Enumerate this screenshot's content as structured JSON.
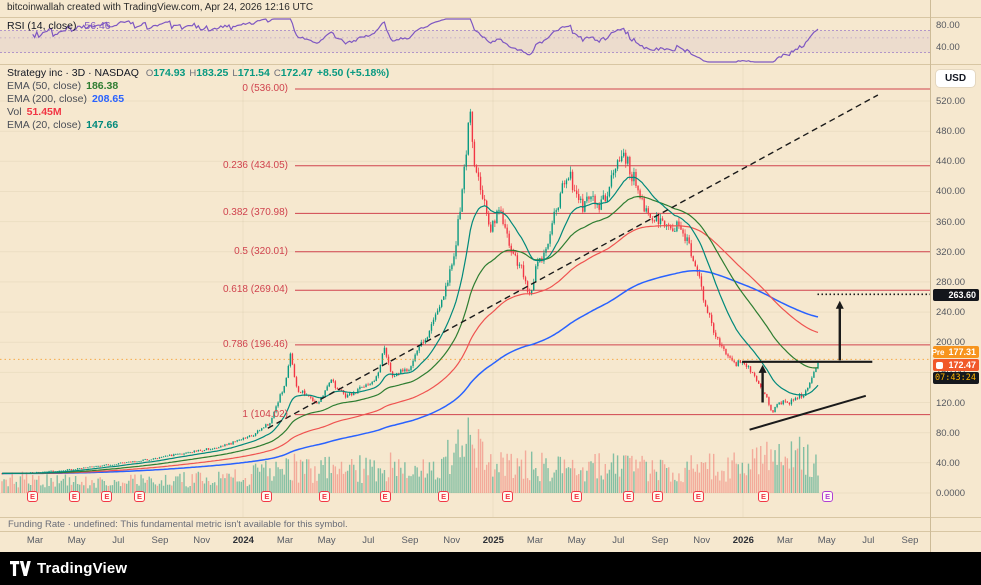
{
  "attribution": "bitcoinwallah created with TradingView.com, Apr 24, 2026 12:16 UTC",
  "rsi_pane": {
    "legend_name": "RSI (14, close)",
    "legend_value": "56.46",
    "ticks": [
      {
        "label": "80.00",
        "value": 80
      },
      {
        "label": "40.00",
        "value": 40
      }
    ]
  },
  "main_legend": {
    "symbol_title": "Strategy inc · 3D · NASDAQ",
    "ohlc": [
      {
        "k": "O",
        "v": "174.93"
      },
      {
        "k": "H",
        "v": "183.25"
      },
      {
        "k": "L",
        "v": "171.54"
      },
      {
        "k": "C",
        "v": "172.47"
      }
    ],
    "change": "+8.50 (+5.18%)",
    "indicators": [
      {
        "name": "EMA (50, close)",
        "value": "186.38",
        "color": "#2e7d31"
      },
      {
        "name": "EMA (200, close)",
        "value": "208.65",
        "color": "#2962ff"
      },
      {
        "name": "Vol",
        "value": "51.45M",
        "color": "#f23645"
      },
      {
        "name": "EMA (20, close)",
        "value": "147.66",
        "color": "#00897b"
      }
    ]
  },
  "price_scale": {
    "currency": "USD",
    "ticks": [
      "520.00",
      "480.00",
      "440.00",
      "400.00",
      "360.00",
      "320.00",
      "280.00",
      "240.00",
      "200.00",
      "160.00",
      "120.00",
      "80.00",
      "40.00",
      "0.0000"
    ],
    "badges": {
      "target": "263.60",
      "pre_label": "Pre",
      "pre_value": "177.31",
      "last_value": "172.47",
      "countdown": "07:43:24"
    }
  },
  "funding_bar": "Funding Rate · undefined: This fundamental metric isn't available for this symbol.",
  "time_axis": [
    "Mar",
    "May",
    "Jul",
    "Sep",
    "Nov",
    "2024",
    "Mar",
    "May",
    "Jul",
    "Sep",
    "Nov",
    "2025",
    "Mar",
    "May",
    "Jul",
    "Sep",
    "Nov",
    "2026",
    "Mar",
    "May",
    "Jul",
    "Sep"
  ],
  "footer": {
    "brand": "TradingView"
  },
  "chart_data": {
    "type": "candlestick",
    "title": "Strategy inc · 3D · NASDAQ",
    "symbol": "Strategy inc",
    "interval": "3D",
    "exchange": "NASDAQ",
    "last_close": 172.47,
    "visible_high": 536.0,
    "visible_low": 104.02,
    "ylim": [
      0,
      565
    ],
    "y_tick_labels": [
      "520.00",
      "480.00",
      "440.00",
      "400.00",
      "360.00",
      "320.00",
      "280.00",
      "240.00",
      "200.00",
      "160.00",
      "120.00",
      "80.00",
      "40.00",
      "0.0000"
    ],
    "x_tick_labels": [
      "Mar",
      "May",
      "Jul",
      "Sep",
      "Nov",
      "2024",
      "Mar",
      "May",
      "Jul",
      "Sep",
      "Nov",
      "2025",
      "Mar",
      "May",
      "Jul",
      "Sep",
      "Nov",
      "2026",
      "Mar",
      "May",
      "Jul",
      "Sep"
    ],
    "rsi": {
      "period": 14,
      "current": 56.46,
      "band": [
        30,
        70
      ]
    },
    "fib_levels": [
      {
        "label": "0 (536.00)",
        "price": 536.0
      },
      {
        "label": "0.236 (434.05)",
        "price": 434.05
      },
      {
        "label": "0.382 (370.98)",
        "price": 370.98
      },
      {
        "label": "0.5 (320.01)",
        "price": 320.01
      },
      {
        "label": "0.618 (269.04)",
        "price": 269.04
      },
      {
        "label": "0.786 (196.46)",
        "price": 196.46
      },
      {
        "label": "1 (104.02)",
        "price": 104.02
      }
    ],
    "price_path": [
      [
        0,
        26
      ],
      [
        0.04,
        27
      ],
      [
        0.075,
        30
      ],
      [
        0.12,
        36
      ],
      [
        0.17,
        43
      ],
      [
        0.22,
        52
      ],
      [
        0.27,
        62
      ],
      [
        0.305,
        75
      ],
      [
        0.33,
        95
      ],
      [
        0.348,
        150
      ],
      [
        0.353,
        185
      ],
      [
        0.36,
        140
      ],
      [
        0.385,
        118
      ],
      [
        0.403,
        148
      ],
      [
        0.422,
        127
      ],
      [
        0.44,
        140
      ],
      [
        0.458,
        150
      ],
      [
        0.468,
        192
      ],
      [
        0.478,
        152
      ],
      [
        0.5,
        168
      ],
      [
        0.52,
        208
      ],
      [
        0.538,
        248
      ],
      [
        0.556,
        330
      ],
      [
        0.568,
        440
      ],
      [
        0.573,
        530
      ],
      [
        0.578,
        445
      ],
      [
        0.589,
        398
      ],
      [
        0.599,
        350
      ],
      [
        0.609,
        382
      ],
      [
        0.617,
        342
      ],
      [
        0.626,
        318
      ],
      [
        0.636,
        300
      ],
      [
        0.646,
        262
      ],
      [
        0.655,
        300
      ],
      [
        0.666,
        322
      ],
      [
        0.675,
        360
      ],
      [
        0.685,
        398
      ],
      [
        0.694,
        428
      ],
      [
        0.703,
        398
      ],
      [
        0.713,
        378
      ],
      [
        0.721,
        395
      ],
      [
        0.731,
        375
      ],
      [
        0.741,
        400
      ],
      [
        0.751,
        430
      ],
      [
        0.76,
        452
      ],
      [
        0.77,
        428
      ],
      [
        0.78,
        400
      ],
      [
        0.79,
        375
      ],
      [
        0.8,
        360
      ],
      [
        0.809,
        370
      ],
      [
        0.819,
        345
      ],
      [
        0.829,
        355
      ],
      [
        0.839,
        338
      ],
      [
        0.848,
        308
      ],
      [
        0.858,
        268
      ],
      [
        0.868,
        228
      ],
      [
        0.878,
        198
      ],
      [
        0.888,
        184
      ],
      [
        0.897,
        170
      ],
      [
        0.907,
        178
      ],
      [
        0.917,
        162
      ],
      [
        0.927,
        143
      ],
      [
        0.936,
        128
      ],
      [
        0.944,
        108
      ],
      [
        0.952,
        122
      ],
      [
        0.962,
        118
      ],
      [
        0.972,
        126
      ],
      [
        0.982,
        130
      ],
      [
        0.99,
        148
      ],
      [
        1,
        172.47
      ]
    ],
    "volume_envelope": [
      [
        0,
        0.3
      ],
      [
        0.1,
        0.22
      ],
      [
        0.2,
        0.25
      ],
      [
        0.3,
        0.35
      ],
      [
        0.34,
        0.6
      ],
      [
        0.37,
        0.45
      ],
      [
        0.45,
        0.5
      ],
      [
        0.52,
        0.55
      ],
      [
        0.555,
        0.8
      ],
      [
        0.573,
        1.0
      ],
      [
        0.6,
        0.8
      ],
      [
        0.64,
        0.55
      ],
      [
        0.7,
        0.5
      ],
      [
        0.75,
        0.6
      ],
      [
        0.8,
        0.45
      ],
      [
        0.85,
        0.5
      ],
      [
        0.9,
        0.55
      ],
      [
        0.94,
        0.7
      ],
      [
        0.97,
        0.8
      ],
      [
        1,
        0.5
      ]
    ],
    "earnings_glyph": "E",
    "earnings_markers": [
      {
        "x": 0.035
      },
      {
        "x": 0.08
      },
      {
        "x": 0.115
      },
      {
        "x": 0.15
      },
      {
        "x": 0.287
      },
      {
        "x": 0.349
      },
      {
        "x": 0.414
      },
      {
        "x": 0.477
      },
      {
        "x": 0.546
      },
      {
        "x": 0.62
      },
      {
        "x": 0.676
      },
      {
        "x": 0.707
      },
      {
        "x": 0.751
      },
      {
        "x": 0.821
      },
      {
        "x": 0.89,
        "variant": "purple"
      }
    ],
    "annotations": {
      "diag_trendline": {
        "x1": 0.288,
        "p1": 86,
        "x2": 0.944,
        "p2": 528
      },
      "target_line": {
        "price": 263.6,
        "x1": 0.879,
        "x2": 1.0
      },
      "resistance_line": {
        "price": 174,
        "x1": 0.798,
        "x2": 0.938
      },
      "support_trendline": {
        "x1": 0.806,
        "p1": 84,
        "x2": 0.931,
        "p2": 129
      },
      "arrow1": {
        "x": 0.82,
        "from": 120,
        "to": 170
      },
      "arrow2": {
        "x": 0.903,
        "from": 176,
        "to": 255
      }
    },
    "colors": {
      "up": "#089981",
      "down": "#f23645",
      "vol_up": "rgba(16,150,120,0.5)",
      "vol_down": "rgba(239,83,80,0.42)",
      "ema20": "#00897b",
      "ema50": "#2e7d31",
      "ema100": "#ef5350",
      "ema200": "#2962ff",
      "fib": "#d0434e",
      "rsi": "#7e57c2",
      "annotation": "#1a1a1a",
      "pre_line": "#f7931a"
    }
  }
}
